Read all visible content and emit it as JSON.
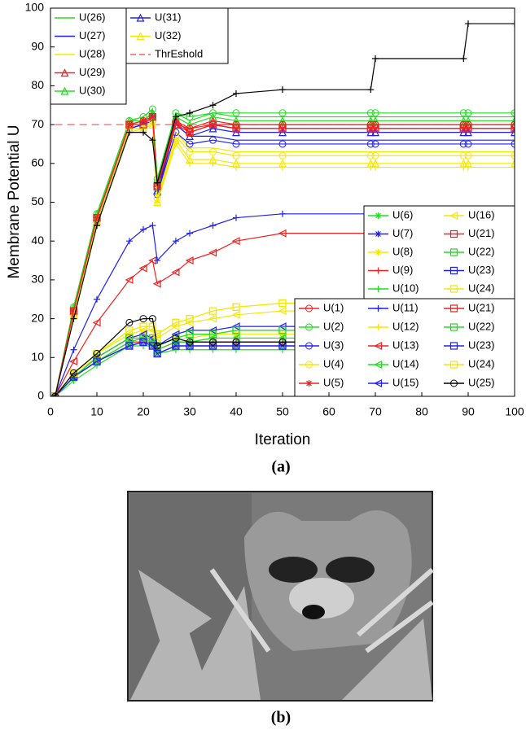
{
  "chart_data": {
    "type": "line",
    "xlabel": "Iteration",
    "ylabel": "Membrane Potential U",
    "caption": "(a)",
    "xlim": [
      0,
      100
    ],
    "ylim": [
      0,
      100
    ],
    "xticks": [
      0,
      10,
      20,
      30,
      40,
      50,
      60,
      70,
      80,
      90,
      100
    ],
    "yticks": [
      0,
      10,
      20,
      30,
      40,
      50,
      60,
      70,
      80,
      90,
      100
    ],
    "x": [
      1,
      5,
      10,
      17,
      20,
      22,
      23,
      27,
      30,
      35,
      40,
      50,
      69,
      70,
      89,
      90,
      100
    ],
    "series": [
      {
        "name": "U(26)",
        "color": "#22dd22",
        "marker": "none",
        "values": [
          0,
          23,
          47,
          71,
          72,
          74,
          56,
          73,
          71,
          73,
          72,
          72,
          72,
          72,
          72,
          72,
          72
        ]
      },
      {
        "name": "U(27)",
        "color": "#2020ee",
        "marker": "none",
        "values": [
          0,
          21,
          45,
          69,
          70,
          72,
          52,
          70,
          67,
          67,
          66,
          66,
          66,
          66,
          66,
          66,
          66
        ]
      },
      {
        "name": "U(28)",
        "color": "#f5e800",
        "marker": "none",
        "values": [
          0,
          22,
          46,
          70,
          70,
          71,
          50,
          68,
          64,
          64,
          63,
          63,
          63,
          63,
          63,
          63,
          63
        ]
      },
      {
        "name": "U(29)",
        "color": "#ee2222",
        "marker": "triangle",
        "values": [
          0,
          22,
          46,
          70,
          71,
          73,
          55,
          71,
          69,
          71,
          70,
          70,
          70,
          70,
          70,
          70,
          70
        ]
      },
      {
        "name": "U(30)",
        "color": "#22dd22",
        "marker": "triangle",
        "values": [
          0,
          23,
          47,
          71,
          71,
          73,
          56,
          72,
          70,
          72,
          71,
          71,
          71,
          71,
          71,
          71,
          71
        ]
      },
      {
        "name": "U(31)",
        "color": "#2020ee",
        "marker": "triangle",
        "values": [
          0,
          22,
          45,
          69,
          70,
          72,
          53,
          70,
          67,
          69,
          68,
          68,
          68,
          68,
          68,
          68,
          68
        ]
      },
      {
        "name": "U(32)",
        "color": "#f5e800",
        "marker": "triangle",
        "values": [
          0,
          21,
          45,
          69,
          69,
          70,
          50,
          66,
          61,
          61,
          60,
          60,
          60,
          60,
          60,
          60,
          60
        ]
      },
      {
        "name": "ThrEshold",
        "color": "#ee6666",
        "marker": "none",
        "dash": true,
        "values": [
          70,
          70,
          70,
          70,
          70,
          70,
          70,
          70,
          70,
          70,
          70,
          70,
          70,
          70,
          70,
          70,
          70
        ]
      },
      {
        "name": "U(6)",
        "color": "#22dd22",
        "marker": "asterisk",
        "values": [
          0,
          5,
          9,
          14,
          15,
          14,
          12,
          14,
          14,
          15,
          15,
          15,
          15,
          15,
          15,
          15,
          15
        ]
      },
      {
        "name": "U(7)",
        "color": "#2020ee",
        "marker": "asterisk",
        "values": [
          0,
          5,
          9,
          13,
          14,
          13,
          11,
          13,
          13,
          13,
          13,
          13,
          13,
          13,
          13,
          13,
          13
        ]
      },
      {
        "name": "U(8)",
        "color": "#f5e800",
        "marker": "asterisk",
        "values": [
          0,
          6,
          10,
          15,
          16,
          15,
          13,
          15,
          15,
          16,
          16,
          16,
          16,
          16,
          16,
          16,
          16
        ]
      },
      {
        "name": "U(9)",
        "color": "#ee2222",
        "marker": "plus",
        "values": [
          0,
          5,
          9,
          14,
          14,
          14,
          12,
          14,
          14,
          14,
          14,
          14,
          14,
          14,
          14,
          14,
          14
        ]
      },
      {
        "name": "U(10)",
        "color": "#22dd22",
        "marker": "plus",
        "values": [
          0,
          4,
          8,
          13,
          13,
          13,
          11,
          12,
          12,
          12,
          12,
          12,
          12,
          12,
          12,
          12,
          12
        ]
      },
      {
        "name": "U(16)",
        "color": "#f5e800",
        "marker": "ltriangle",
        "values": [
          0,
          6,
          11,
          16,
          17,
          17,
          15,
          18,
          19,
          20,
          21,
          22,
          22,
          22,
          22,
          22,
          22
        ]
      },
      {
        "name": "U(21)",
        "color": "#ee2222",
        "marker": "square",
        "values": [
          0,
          22,
          46,
          70,
          70,
          72,
          54,
          70,
          68,
          70,
          69,
          69,
          69,
          69,
          69,
          69,
          69
        ]
      },
      {
        "name": "U(22)",
        "color": "#22dd22",
        "marker": "square",
        "values": [
          0,
          5,
          10,
          15,
          15,
          15,
          13,
          15,
          16,
          16,
          17,
          17,
          17,
          17,
          17,
          17,
          17
        ]
      },
      {
        "name": "U(23)",
        "color": "#2020ee",
        "marker": "square",
        "values": [
          0,
          5,
          9,
          13,
          14,
          13,
          11,
          13,
          13,
          13,
          13,
          13,
          13,
          13,
          13,
          13,
          13
        ]
      },
      {
        "name": "U(24)",
        "color": "#f5e800",
        "marker": "square",
        "values": [
          0,
          6,
          11,
          17,
          18,
          18,
          16,
          19,
          20,
          22,
          23,
          24,
          24,
          24,
          24,
          24,
          24
        ]
      },
      {
        "name": "U(1)",
        "color": "#ee2222",
        "marker": "circle",
        "values": [
          0,
          22,
          46,
          70,
          71,
          72,
          54,
          70,
          69,
          70,
          70,
          70,
          70,
          70,
          70,
          70,
          70
        ]
      },
      {
        "name": "U(2)",
        "color": "#22dd22",
        "marker": "circle",
        "values": [
          0,
          23,
          47,
          71,
          72,
          74,
          56,
          73,
          72,
          73,
          73,
          73,
          73,
          73,
          73,
          73,
          73
        ]
      },
      {
        "name": "U(3)",
        "color": "#2020ee",
        "marker": "circle",
        "values": [
          0,
          21,
          45,
          69,
          70,
          71,
          52,
          68,
          65,
          66,
          65,
          65,
          65,
          65,
          65,
          65,
          65
        ]
      },
      {
        "name": "U(4)",
        "color": "#f5e800",
        "marker": "circle",
        "values": [
          0,
          21,
          45,
          69,
          69,
          71,
          51,
          67,
          63,
          63,
          62,
          62,
          62,
          62,
          62,
          62,
          62
        ]
      },
      {
        "name": "U(5)",
        "color": "#ee2222",
        "marker": "asterisk",
        "values": [
          0,
          22,
          46,
          70,
          71,
          72,
          54,
          71,
          68,
          70,
          69,
          69,
          69,
          69,
          69,
          69,
          69
        ]
      },
      {
        "name": "U(11)",
        "color": "#2020ee",
        "marker": "plus",
        "values": [
          0,
          12,
          25,
          40,
          43,
          44,
          35,
          40,
          42,
          44,
          46,
          47,
          47,
          47,
          47,
          47,
          47
        ]
      },
      {
        "name": "U(12)",
        "color": "#f5e800",
        "marker": "plus",
        "values": [
          0,
          21,
          44,
          68,
          69,
          70,
          50,
          65,
          60,
          60,
          59,
          59,
          59,
          59,
          59,
          59,
          59
        ]
      },
      {
        "name": "U(13)",
        "color": "#ee2222",
        "marker": "ltriangle",
        "values": [
          0,
          9,
          19,
          30,
          33,
          35,
          29,
          32,
          35,
          37,
          40,
          42,
          42,
          42,
          42,
          42,
          42
        ]
      },
      {
        "name": "U(14)",
        "color": "#22dd22",
        "marker": "ltriangle",
        "values": [
          0,
          5,
          9,
          14,
          15,
          14,
          12,
          14,
          14,
          15,
          15,
          15,
          15,
          15,
          15,
          15,
          15
        ]
      },
      {
        "name": "U(15)",
        "color": "#2020ee",
        "marker": "ltriangle",
        "values": [
          0,
          5,
          10,
          15,
          16,
          15,
          13,
          16,
          17,
          17,
          18,
          18,
          18,
          18,
          18,
          18,
          18
        ]
      },
      {
        "name": "U(21)",
        "color": "#ee2222",
        "marker": "square",
        "values": [
          0,
          22,
          46,
          70,
          70,
          72,
          54,
          70,
          68,
          70,
          69,
          69,
          69,
          69,
          69,
          69,
          69
        ]
      },
      {
        "name": "U(22)",
        "color": "#22dd22",
        "marker": "square",
        "values": [
          0,
          5,
          10,
          15,
          15,
          15,
          13,
          15,
          16,
          16,
          17,
          17,
          17,
          17,
          17,
          17,
          17
        ]
      },
      {
        "name": "U(23)",
        "color": "#2020ee",
        "marker": "square",
        "values": [
          0,
          5,
          9,
          13,
          14,
          13,
          11,
          13,
          13,
          13,
          13,
          13,
          13,
          13,
          13,
          13,
          13
        ]
      },
      {
        "name": "U(24)",
        "color": "#f5e800",
        "marker": "square",
        "values": [
          0,
          6,
          11,
          17,
          18,
          18,
          16,
          19,
          20,
          22,
          23,
          24,
          24,
          24,
          24,
          24,
          24
        ]
      },
      {
        "name": "U(25)",
        "color": "#000000",
        "marker": "circle",
        "values": [
          0,
          6,
          11,
          19,
          20,
          20,
          13,
          15,
          14,
          14,
          14,
          14,
          14,
          14,
          14,
          14,
          14
        ]
      },
      {
        "color": "#000000",
        "marker": "plus",
        "values": [
          0,
          20,
          44,
          68,
          68,
          66,
          55,
          72,
          73,
          75,
          78,
          79,
          79,
          87,
          87,
          96,
          96
        ]
      }
    ]
  },
  "figure_b": {
    "caption": "(b)"
  }
}
